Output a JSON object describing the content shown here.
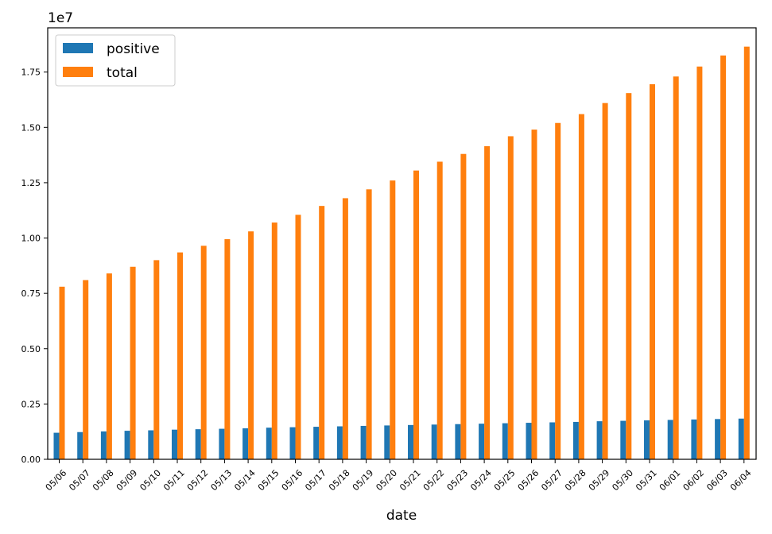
{
  "chart_data": {
    "type": "bar",
    "categories": [
      "05/06",
      "05/07",
      "05/08",
      "05/09",
      "05/10",
      "05/11",
      "05/12",
      "05/13",
      "05/14",
      "05/15",
      "05/16",
      "05/17",
      "05/18",
      "05/19",
      "05/20",
      "05/21",
      "05/22",
      "05/23",
      "05/24",
      "05/25",
      "05/26",
      "05/27",
      "05/28",
      "05/29",
      "05/30",
      "05/31",
      "06/01",
      "06/02",
      "06/03",
      "06/04"
    ],
    "series": [
      {
        "name": "positive",
        "color": "#1f77b4",
        "values": [
          1200000,
          1230000,
          1260000,
          1290000,
          1310000,
          1340000,
          1360000,
          1380000,
          1400000,
          1430000,
          1450000,
          1470000,
          1490000,
          1510000,
          1530000,
          1550000,
          1570000,
          1590000,
          1610000,
          1630000,
          1650000,
          1670000,
          1690000,
          1720000,
          1740000,
          1760000,
          1780000,
          1800000,
          1820000,
          1840000
        ]
      },
      {
        "name": "total",
        "color": "#ff7f0e",
        "values": [
          7800000,
          8100000,
          8400000,
          8700000,
          9000000,
          9350000,
          9650000,
          9950000,
          10300000,
          10700000,
          11050000,
          11450000,
          11800000,
          12200000,
          12600000,
          13050000,
          13450000,
          13800000,
          14150000,
          14600000,
          14900000,
          15200000,
          15600000,
          16100000,
          16550000,
          16950000,
          17300000,
          17750000,
          18250000,
          18650000
        ]
      }
    ],
    "xlabel": "date",
    "ylabel": "",
    "offset_label": "1e7",
    "ylim": [
      0,
      19500000
    ],
    "yticks": [
      0,
      2500000,
      5000000,
      7500000,
      10000000,
      12500000,
      15000000,
      17500000
    ],
    "ytick_labels": [
      "0.00",
      "0.25",
      "0.50",
      "0.75",
      "1.00",
      "1.25",
      "1.50",
      "1.75"
    ],
    "legend_position": "top-left",
    "grid": false
  }
}
